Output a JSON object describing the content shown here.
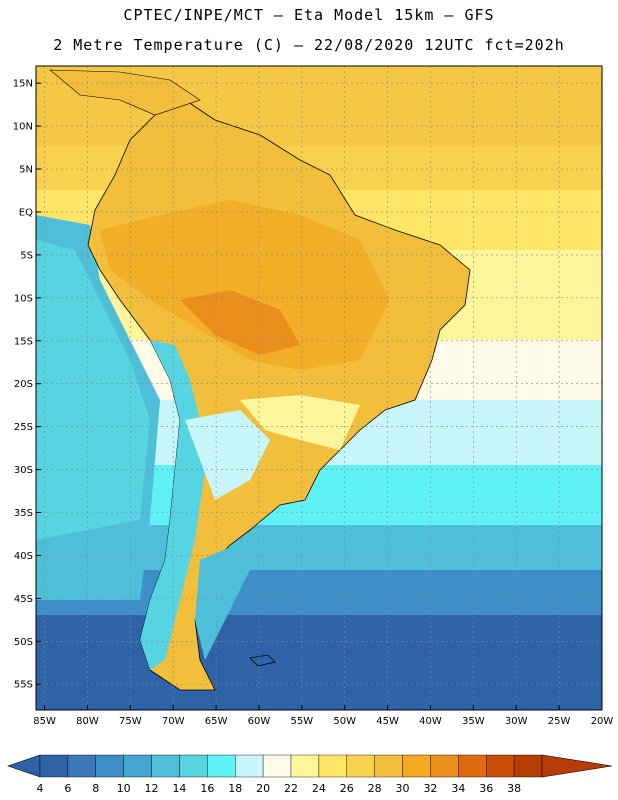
{
  "header": {
    "line1": "CPTEC/INPE/MCT —  Eta Model 15km — GFS",
    "line2": "2 Metre Temperature (C) — 22/08/2020 12UTC fct=202h"
  },
  "map": {
    "lon_range": [
      -86,
      -20
    ],
    "lat_range": [
      17,
      -58
    ],
    "lon_ticks": [
      "85W",
      "80W",
      "75W",
      "70W",
      "65W",
      "60W",
      "55W",
      "50W",
      "45W",
      "40W",
      "35W",
      "30W",
      "25W",
      "20W"
    ],
    "lat_ticks": [
      "15N",
      "10N",
      "5N",
      "EQ",
      "5S",
      "10S",
      "15S",
      "20S",
      "25S",
      "30S",
      "35S",
      "40S",
      "45S",
      "50S",
      "55S"
    ],
    "grid": "dotted"
  },
  "colorbar": {
    "labels": [
      "4",
      "6",
      "8",
      "10",
      "12",
      "14",
      "16",
      "18",
      "20",
      "22",
      "24",
      "26",
      "28",
      "30",
      "32",
      "34",
      "36",
      "38"
    ],
    "colors": [
      "#2f63a8",
      "#3a78b7",
      "#3e8fc8",
      "#44a7d1",
      "#4ebed9",
      "#57d4e2",
      "#5ef1f6",
      "#c8f6fb",
      "#fffbe8",
      "#fff69b",
      "#ffe666",
      "#f8d24e",
      "#f2bf3d",
      "#f2aa22",
      "#ea8f1c",
      "#e06a10",
      "#c84d08",
      "#b83c06"
    ]
  }
}
